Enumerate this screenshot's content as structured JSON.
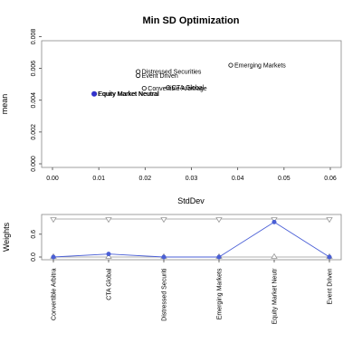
{
  "chart_data": [
    {
      "type": "scatter",
      "title": "Min SD Optimization",
      "xlabel": "StdDev",
      "ylabel": "mean",
      "xlim": [
        0,
        0.06
      ],
      "ylim": [
        0,
        0.0065
      ],
      "xticks": [
        "0.00",
        "0.01",
        "0.02",
        "0.03",
        "0.04",
        "0.05",
        "0.06"
      ],
      "yticks": [
        "0.000",
        "0.002",
        "0.004",
        "0.006",
        "0.008"
      ],
      "points": [
        {
          "label": "Emerging Markets",
          "x": 0.0385,
          "y": 0.0062,
          "highlight": false
        },
        {
          "label": "Distressed Securities",
          "x": 0.0185,
          "y": 0.0058,
          "highlight": false
        },
        {
          "label": "Event Driven",
          "x": 0.0185,
          "y": 0.00555,
          "highlight": false
        },
        {
          "label": "CTA Global",
          "x": 0.025,
          "y": 0.0048,
          "highlight": false
        },
        {
          "label": "Convertible Arbitrage",
          "x": 0.0198,
          "y": 0.00475,
          "highlight": false
        },
        {
          "label": "Equity Market Neutral",
          "x": 0.0091,
          "y": 0.0044,
          "highlight": false
        },
        {
          "label": "Equity Market Neutral",
          "x": 0.009,
          "y": 0.0044,
          "highlight": true
        }
      ],
      "overlap_label": "Equity Market Neutral",
      "colors": {
        "highlight": "#3333cc",
        "points": "#000000",
        "frame": "#888888"
      }
    },
    {
      "type": "line",
      "ylabel": "Weights",
      "ylim": [
        0,
        1
      ],
      "yticks": [
        "0.0",
        "0.6"
      ],
      "categories": [
        "Convertible Arbitra",
        "CTA Global",
        "Distressed Securiti",
        "Emerging Markets",
        "Equity Market Neutr",
        "Event Driven"
      ],
      "series": [
        {
          "values": [
            0.0,
            0.08,
            0.0,
            0.0,
            0.92,
            0.0
          ],
          "color": "#4a5fd6"
        }
      ],
      "upper_bound": [
        1,
        1,
        1,
        1,
        1,
        1
      ],
      "lower_bound": [
        0,
        0,
        0,
        0,
        0,
        0
      ],
      "colors": {
        "bounds": "#999999",
        "weights": "#4a5fd6"
      }
    }
  ]
}
